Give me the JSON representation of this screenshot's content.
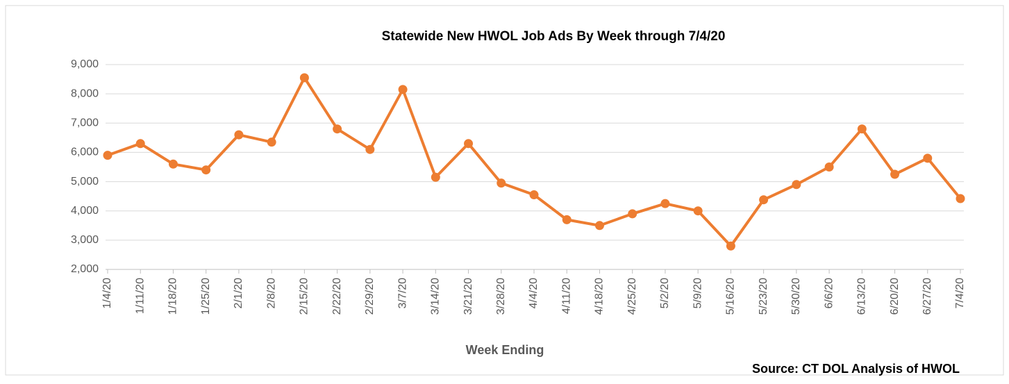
{
  "chart_data": {
    "type": "line",
    "title": "Statewide New HWOL Job Ads By Week through 7/4/20",
    "x_label": "Week Ending",
    "source": "Source: CT DOL Analysis of HWOL",
    "categories": [
      "1/4/20",
      "1/11/20",
      "1/18/20",
      "1/25/20",
      "2/1/20",
      "2/8/20",
      "2/15/20",
      "2/22/20",
      "2/29/20",
      "3/7/20",
      "3/14/20",
      "3/21/20",
      "3/28/20",
      "4/4/20",
      "4/11/20",
      "4/18/20",
      "4/25/20",
      "5/2/20",
      "5/9/20",
      "5/16/20",
      "5/23/20",
      "5/30/20",
      "6/6/20",
      "6/13/20",
      "6/20/20",
      "6/27/20",
      "7/4/20"
    ],
    "values": [
      5900,
      6300,
      5600,
      5400,
      6600,
      6350,
      8550,
      6800,
      6100,
      8150,
      5150,
      6300,
      4950,
      4550,
      3700,
      3500,
      3900,
      4250,
      4000,
      2800,
      4380,
      4900,
      5500,
      6800,
      5250,
      5800,
      4420
    ],
    "color": "#ed7d31",
    "ylim": [
      2000,
      9000
    ],
    "yticks": [
      {
        "value": 2000,
        "label": "2,000"
      },
      {
        "value": 3000,
        "label": "3,000"
      },
      {
        "value": 4000,
        "label": "4,000"
      },
      {
        "value": 5000,
        "label": "5,000"
      },
      {
        "value": 6000,
        "label": "6,000"
      },
      {
        "value": 7000,
        "label": "7,000"
      },
      {
        "value": 8000,
        "label": "8,000"
      },
      {
        "value": 9000,
        "label": "9,000"
      }
    ],
    "grid": true
  }
}
